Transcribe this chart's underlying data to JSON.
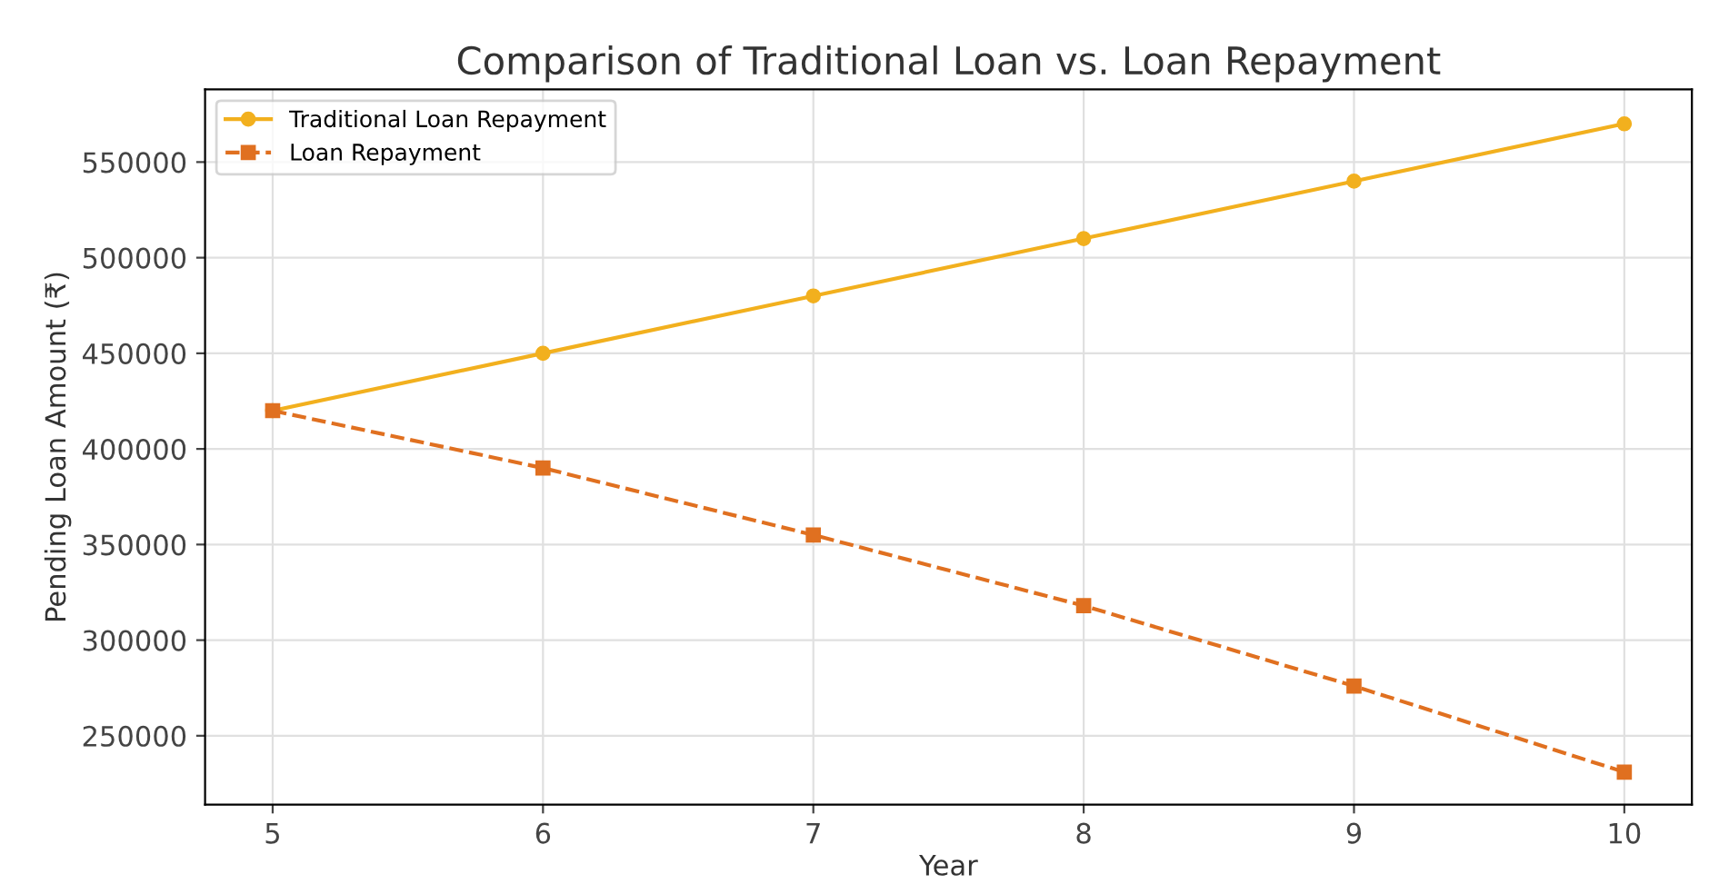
{
  "chart_data": {
    "type": "line",
    "title": "Comparison of Traditional Loan vs. Loan Repayment",
    "xlabel": "Year",
    "ylabel": "Pending Loan Amount (₹)",
    "x": [
      5,
      6,
      7,
      8,
      9,
      10
    ],
    "series": [
      {
        "name": "Traditional Loan Repayment",
        "color": "#f2b01e",
        "values": [
          420000,
          450000,
          480000,
          510000,
          540000,
          570000
        ],
        "marker": "circle",
        "line_style": "solid"
      },
      {
        "name": "Loan Repayment",
        "color": "#e07020",
        "values": [
          420000,
          390000,
          355000,
          318000,
          276000,
          231000
        ],
        "marker": "square",
        "line_style": "dashed"
      }
    ],
    "xlim": [
      4.75,
      10.25
    ],
    "ylim": [
      214000,
      588000
    ],
    "xticks": [
      5,
      6,
      7,
      8,
      9,
      10
    ],
    "yticks": [
      250000,
      300000,
      350000,
      400000,
      450000,
      500000,
      550000
    ],
    "grid": true,
    "legend": "top left"
  }
}
